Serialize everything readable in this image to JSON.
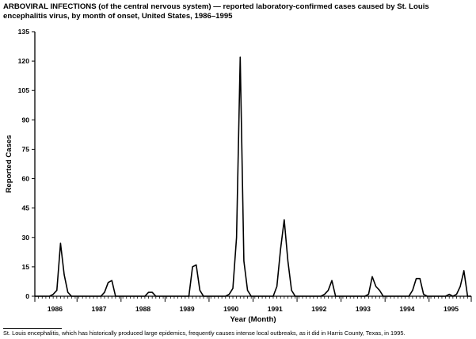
{
  "title": "ARBOVIRAL INFECTIONS (of the central nervous system) — reported laboratory-confirmed cases caused by St. Louis encephalitis virus, by month of onset, United States, 1986–1995",
  "footnote": "St. Louis encephalitis, which has historically produced large epidemics, frequently causes intense local outbreaks, as it did in Harris County, Texas, in 1995.",
  "chart_data": {
    "type": "line",
    "xlabel": "Year (Month)",
    "ylabel": "Reported Cases",
    "ylim": [
      0,
      135
    ],
    "yticks": [
      0,
      15,
      30,
      45,
      60,
      75,
      90,
      105,
      120,
      135
    ],
    "categories": [
      "1986",
      "1987",
      "1988",
      "1989",
      "1990",
      "1991",
      "1992",
      "1993",
      "1994",
      "1995"
    ],
    "grid": false,
    "series": [
      {
        "values": [
          [
            0,
            0,
            0,
            0,
            0,
            1,
            3,
            27,
            11,
            2,
            0,
            0
          ],
          [
            0,
            0,
            0,
            0,
            0,
            0,
            0,
            2,
            7,
            8,
            0,
            0
          ],
          [
            0,
            0,
            0,
            0,
            0,
            0,
            0,
            2,
            2,
            0,
            0,
            0
          ],
          [
            0,
            0,
            0,
            0,
            0,
            0,
            0,
            15,
            16,
            3,
            0,
            0
          ],
          [
            0,
            0,
            0,
            0,
            0,
            1,
            4,
            30,
            122,
            18,
            3,
            0
          ],
          [
            0,
            0,
            0,
            0,
            0,
            0,
            5,
            24,
            39,
            18,
            3,
            0
          ],
          [
            0,
            0,
            0,
            0,
            0,
            0,
            0,
            1,
            3,
            8,
            0,
            0
          ],
          [
            0,
            0,
            0,
            0,
            0,
            0,
            0,
            1,
            10,
            5,
            3,
            0
          ],
          [
            0,
            0,
            0,
            0,
            0,
            0,
            0,
            3,
            9,
            9,
            1,
            0
          ],
          [
            0,
            0,
            0,
            0,
            0,
            1,
            0,
            1,
            5,
            13,
            0,
            0
          ]
        ]
      }
    ]
  }
}
